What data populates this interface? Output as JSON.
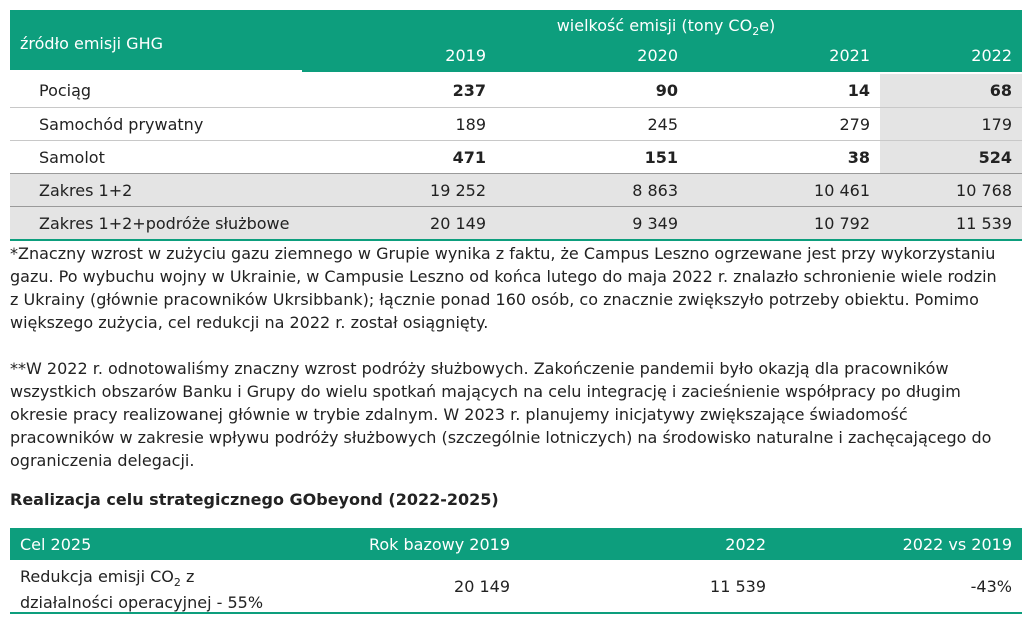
{
  "emissions_table": {
    "source_header": "źródło emisji GHG",
    "unit_header_prefix": "wielkość emisji (tony CO",
    "unit_header_sub": "2",
    "unit_header_suffix": "e)",
    "years": [
      "2019",
      "2020",
      "2021",
      "2022"
    ],
    "rows": [
      {
        "label": "Pociąg",
        "values": [
          "237",
          "90",
          "14",
          "68"
        ]
      },
      {
        "label": "Samochód prywatny",
        "values": [
          "189",
          "245",
          "279",
          "179"
        ]
      },
      {
        "label": "Samolot",
        "values": [
          "471",
          "151",
          "38",
          "524"
        ]
      },
      {
        "label": "Zakres 1+2",
        "values": [
          "19 252",
          "8 863",
          "10 461",
          "10 768"
        ]
      },
      {
        "label": "Zakres 1+2+podróże służbowe",
        "values": [
          "20 149",
          "9 349",
          "10 792",
          "11 539"
        ]
      }
    ]
  },
  "footnote_1": [
    "*Znaczny wzrost w zużyciu gazu ziemnego w Grupie wynika z faktu, że Campus Leszno ogrzewane jest przy wykorzystaniu",
    "gazu. Po wybuchu wojny w Ukrainie, w Campusie Leszno od końca lutego do maja 2022 r. znalazło schronienie wiele rodzin",
    "z Ukrainy (głównie pracowników Ukrsibbank); łącznie ponad 160 osób, co znacznie zwiększyło potrzeby obiektu. Pomimo",
    "większego zużycia, cel redukcji na 2022 r. został osiągnięty."
  ],
  "footnote_2": [
    "**W 2022 r. odnotowaliśmy znaczny wzrost podróży służbowych. Zakończenie pandemii było okazją dla pracowników",
    "wszystkich obszarów Banku i Grupy do wielu spotkań mających na celu integrację i zacieśnienie współpracy po długim",
    "okresie pracy realizowanej głównie w trybie zdalnym. W 2023 r. planujemy inicjatywy zwiększające świadomość",
    "pracowników w zakresie wpływu podróży służbowych (szczególnie lotniczych) na środowisko naturalne i zachęcającego do",
    "ograniczenia delegacji."
  ],
  "section_title": "Realizacja celu strategicznego GObeyond (2022-2025)",
  "goal_table": {
    "headers": [
      "Cel 2025",
      "Rok bazowy 2019",
      "2022",
      "2022 vs 2019"
    ],
    "row": {
      "label_line1_prefix": "Redukcja emisji CO",
      "label_line1_sub": "2",
      "label_line1_suffix": " z",
      "label_line2": "działalności operacyjnej - 55%",
      "base_2019": "20 149",
      "value_2022": "11 539",
      "change": "-43%"
    }
  }
}
